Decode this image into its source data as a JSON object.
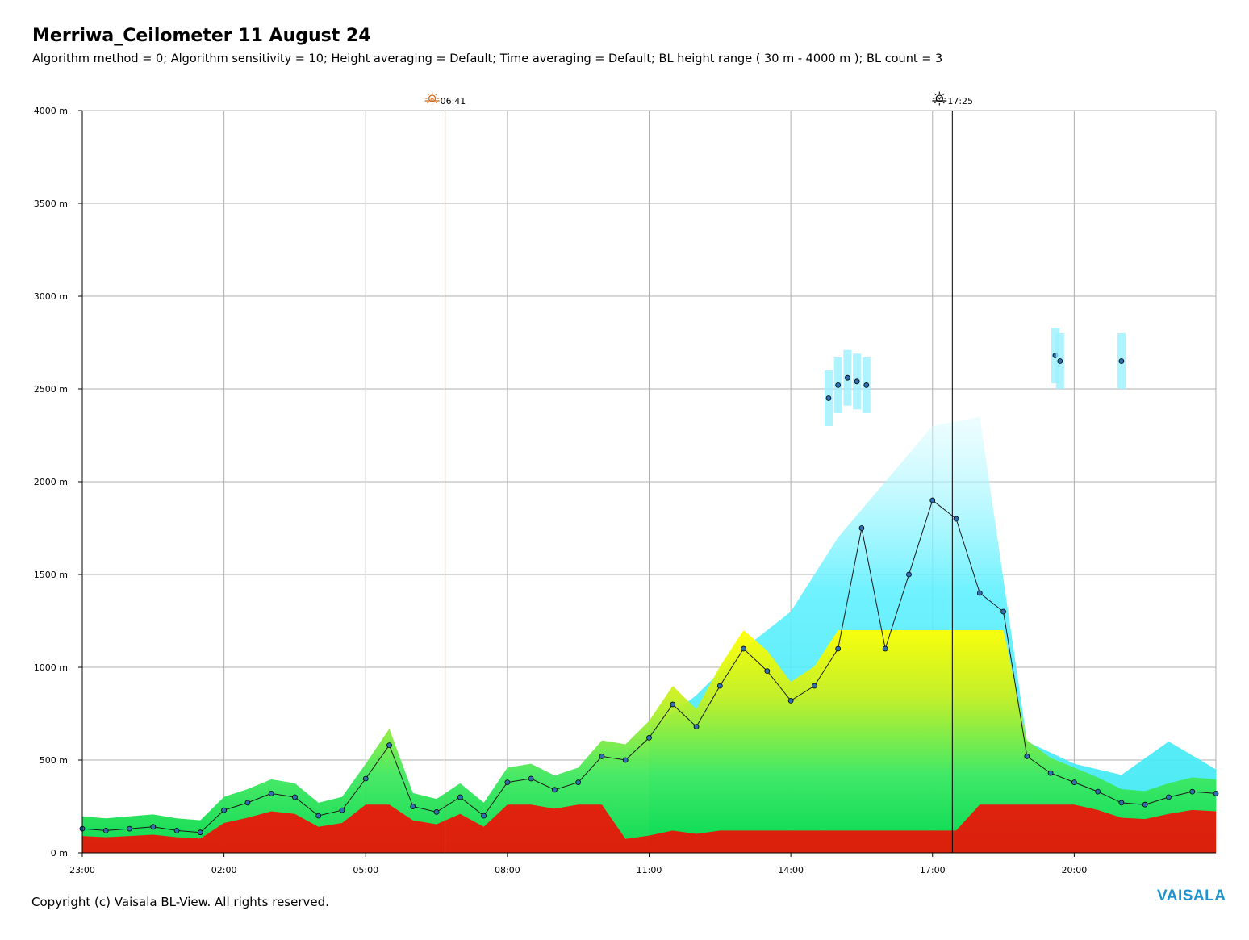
{
  "header": {
    "title": "Merriwa_Ceilometer 11 August 24",
    "subtitle": "Algorithm method = 0; Algorithm sensitivity = 10; Height averaging = Default; Time averaging = Default; BL height range ( 30 m - 4000 m ); BL count = 3"
  },
  "footer": {
    "copyright": "Copyright (c) Vaisala BL-View. All rights reserved.",
    "brand": "VAISALA"
  },
  "colors": {
    "grid": "#b0b0b0",
    "sunrise_line": "#d2691e",
    "sunset_line": "#000000",
    "bl_marker": "#2f6fb0",
    "cloud_marker": "#2e8b57",
    "aerosol_low": "#00e060",
    "aerosol_mid": "#ffff00",
    "aerosol_high": "#ff0000",
    "haze": "#40e8ff"
  },
  "chart_data": {
    "type": "heatmap",
    "title": "Merriwa_Ceilometer 11 August 24",
    "xlabel": "",
    "ylabel": "",
    "x_ticks": [
      "23:00",
      "02:00",
      "05:00",
      "08:00",
      "11:00",
      "14:00",
      "17:00",
      "20:00"
    ],
    "x_tick_hours": [
      23,
      26,
      29,
      32,
      35,
      38,
      41,
      44
    ],
    "xlim_hours": [
      23,
      47
    ],
    "y_ticks": [
      "0 m",
      "500 m",
      "1000 m",
      "1500 m",
      "2000 m",
      "2500 m",
      "3000 m",
      "3500 m",
      "4000 m"
    ],
    "y_tick_values": [
      0,
      500,
      1000,
      1500,
      2000,
      2500,
      3000,
      3500,
      4000
    ],
    "ylim": [
      0,
      4000
    ],
    "y_unit": "m",
    "grid": true,
    "sunrise": {
      "label": "06:41",
      "hour": 30.68
    },
    "sunset": {
      "label": "17:25",
      "hour": 41.42
    },
    "bl_height_series": {
      "name": "",
      "x_hours": [
        23.0,
        23.5,
        24.0,
        24.5,
        25.0,
        25.5,
        26.0,
        26.5,
        27.0,
        27.5,
        28.0,
        28.5,
        29.0,
        29.5,
        30.0,
        30.5,
        31.0,
        31.5,
        32.0,
        32.5,
        33.0,
        33.5,
        34.0,
        34.5,
        35.0,
        35.5,
        36.0,
        36.5,
        37.0,
        37.5,
        38.0,
        38.5,
        39.0,
        39.5,
        40.0,
        40.5,
        41.0,
        41.5,
        42.0,
        42.5,
        43.0,
        43.5,
        44.0,
        44.5,
        45.0,
        45.5,
        46.0,
        46.5,
        47.0
      ],
      "values": [
        130,
        120,
        130,
        140,
        120,
        110,
        230,
        270,
        320,
        300,
        200,
        230,
        400,
        580,
        250,
        220,
        300,
        200,
        380,
        400,
        340,
        380,
        520,
        500,
        620,
        800,
        680,
        900,
        1100,
        980,
        820,
        900,
        1100,
        1750,
        1100,
        1500,
        1900,
        1800,
        1400,
        1300,
        520,
        430,
        380,
        330,
        270,
        260,
        300,
        330,
        320
      ]
    },
    "aerosol_top_m": {
      "x_hours": [
        23.0,
        24.0,
        25.0,
        26.0,
        27.0,
        28.0,
        29.0,
        30.0,
        31.0,
        32.0,
        33.0,
        34.0,
        35.0,
        36.0,
        37.0,
        38.0,
        39.0,
        40.0,
        41.0,
        42.0,
        43.0,
        44.0,
        45.0,
        46.0,
        47.0
      ],
      "values": [
        250,
        260,
        280,
        300,
        380,
        400,
        520,
        300,
        340,
        420,
        480,
        560,
        650,
        850,
        1100,
        1300,
        1700,
        2000,
        2300,
        2350,
        600,
        480,
        420,
        600,
        450
      ]
    },
    "upper_cloud_layer": {
      "x_hours": [
        38.8,
        39.0,
        39.2,
        39.4,
        39.6,
        43.6,
        43.7,
        45.0
      ],
      "values": [
        2450,
        2520,
        2560,
        2540,
        2520,
        2680,
        2650,
        2650
      ]
    }
  }
}
